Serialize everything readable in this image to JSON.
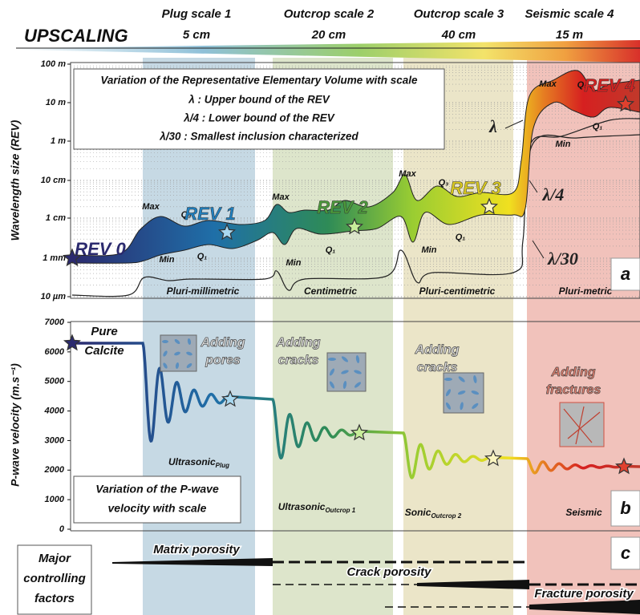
{
  "header": {
    "title": "UPSCALING",
    "scales": [
      {
        "name": "Plug scale 1",
        "size": "5 cm"
      },
      {
        "name": "Outcrop scale 2",
        "size": "20 cm"
      },
      {
        "name": "Outcrop scale 3",
        "size": "40 cm"
      },
      {
        "name": "Seismic scale 4",
        "size": "15 m"
      }
    ]
  },
  "panel_a": {
    "letter": "a",
    "y_axis_label": "Wavelength size (REV)",
    "y_ticks": [
      "100 m",
      "10 m",
      "1 m",
      "10 cm",
      "1 cm",
      "1 mm",
      "10 µm"
    ],
    "legend": {
      "title": "Variation of the Representative Elementary Volume with scale",
      "lines": [
        "λ : Upper bound of the REV",
        "λ/4 : Lower bound of the REV",
        "λ/30 : Smallest inclusion characterized"
      ]
    },
    "rev_labels": [
      "REV 0",
      "REV 1",
      "REV 2",
      "REV 3",
      "REV 4"
    ],
    "curve_labels": {
      "upper": "λ",
      "lower": "λ/4",
      "smallest": "λ/30"
    },
    "quantile_labels": [
      {
        "max": "Max",
        "q3": "Q₃",
        "q1": "Q₁",
        "min": "Min"
      },
      {
        "max": "Max",
        "q1": "Q₁",
        "min": "Min"
      },
      {
        "max": "Max",
        "q3": "Q₃",
        "q1": "Q₁",
        "min": "Min"
      },
      {
        "max": "Max",
        "q3": "Q₃",
        "q1": "Q₁",
        "min": "Min"
      }
    ],
    "zones": [
      "Pluri-millimetric",
      "Centimetric",
      "Pluri-centimetric",
      "Pluri-metric"
    ]
  },
  "panel_b": {
    "letter": "b",
    "y_axis_label": "P-wave velocity (m.s⁻¹)",
    "y_ticks": [
      7000,
      6000,
      5000,
      4000,
      3000,
      2000,
      1000,
      0
    ],
    "start_label": [
      "Pure",
      "Calcite"
    ],
    "process_labels": [
      [
        "Adding",
        "pores"
      ],
      [
        "Adding",
        "cracks"
      ],
      [
        "Adding",
        "cracks"
      ],
      [
        "Adding",
        "fractures"
      ]
    ],
    "methods": [
      {
        "name": "Ultrasonic",
        "sub": "Plug"
      },
      {
        "name": "Ultrasonic",
        "sub": "Outcrop 1"
      },
      {
        "name": "Sonic",
        "sub": "Outcrop 2"
      },
      {
        "name": "Seismic"
      }
    ],
    "box": [
      "Variation of the P-wave",
      "velocity with scale"
    ]
  },
  "panel_c": {
    "letter": "c",
    "title": [
      "Major",
      "controlling",
      "factors"
    ],
    "factors": [
      "Matrix porosity",
      "Crack porosity",
      "Fracture porosity"
    ]
  }
}
